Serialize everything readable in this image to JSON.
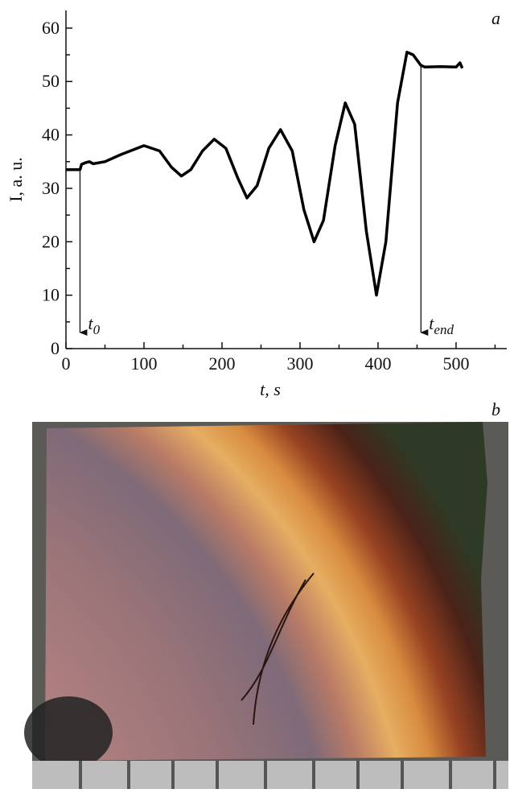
{
  "chart_data": {
    "type": "line",
    "panel_label": "a",
    "x_label": "t, s",
    "y_label": "I, a. u.",
    "x": [
      0,
      18,
      20,
      25,
      30,
      35,
      50,
      70,
      100,
      120,
      135,
      148,
      160,
      175,
      190,
      205,
      220,
      232,
      245,
      260,
      275,
      290,
      305,
      318,
      330,
      345,
      358,
      370,
      385,
      398,
      410,
      425,
      437,
      445,
      455,
      460,
      480,
      500,
      505,
      508
    ],
    "values": [
      33.5,
      33.5,
      34.5,
      34.8,
      35,
      34.6,
      35,
      36.3,
      38,
      37,
      34,
      32.3,
      33.5,
      37,
      39.2,
      37.5,
      32,
      28.2,
      30.5,
      37.5,
      41,
      37,
      26,
      20,
      24,
      38,
      46,
      42,
      22,
      10,
      20,
      46,
      55.5,
      55,
      53,
      52.7,
      52.8,
      52.7,
      53.5,
      52.5
    ],
    "color": "#000000",
    "xlim": [
      0,
      565
    ],
    "ylim": [
      0,
      63.3
    ],
    "xticks": [
      0,
      100,
      200,
      300,
      400,
      500
    ],
    "yticks": [
      0,
      10,
      20,
      30,
      40,
      50,
      60
    ],
    "xminorticks": [
      50,
      150,
      250,
      350,
      450,
      550
    ],
    "yminorticks": [
      5,
      15,
      25,
      35,
      45,
      55
    ],
    "annotations": [
      {
        "text": "t",
        "sub": "0",
        "x": 18
      },
      {
        "text": "t",
        "sub": "end",
        "x": 455
      }
    ]
  },
  "photo": {
    "panel_label": "b"
  }
}
